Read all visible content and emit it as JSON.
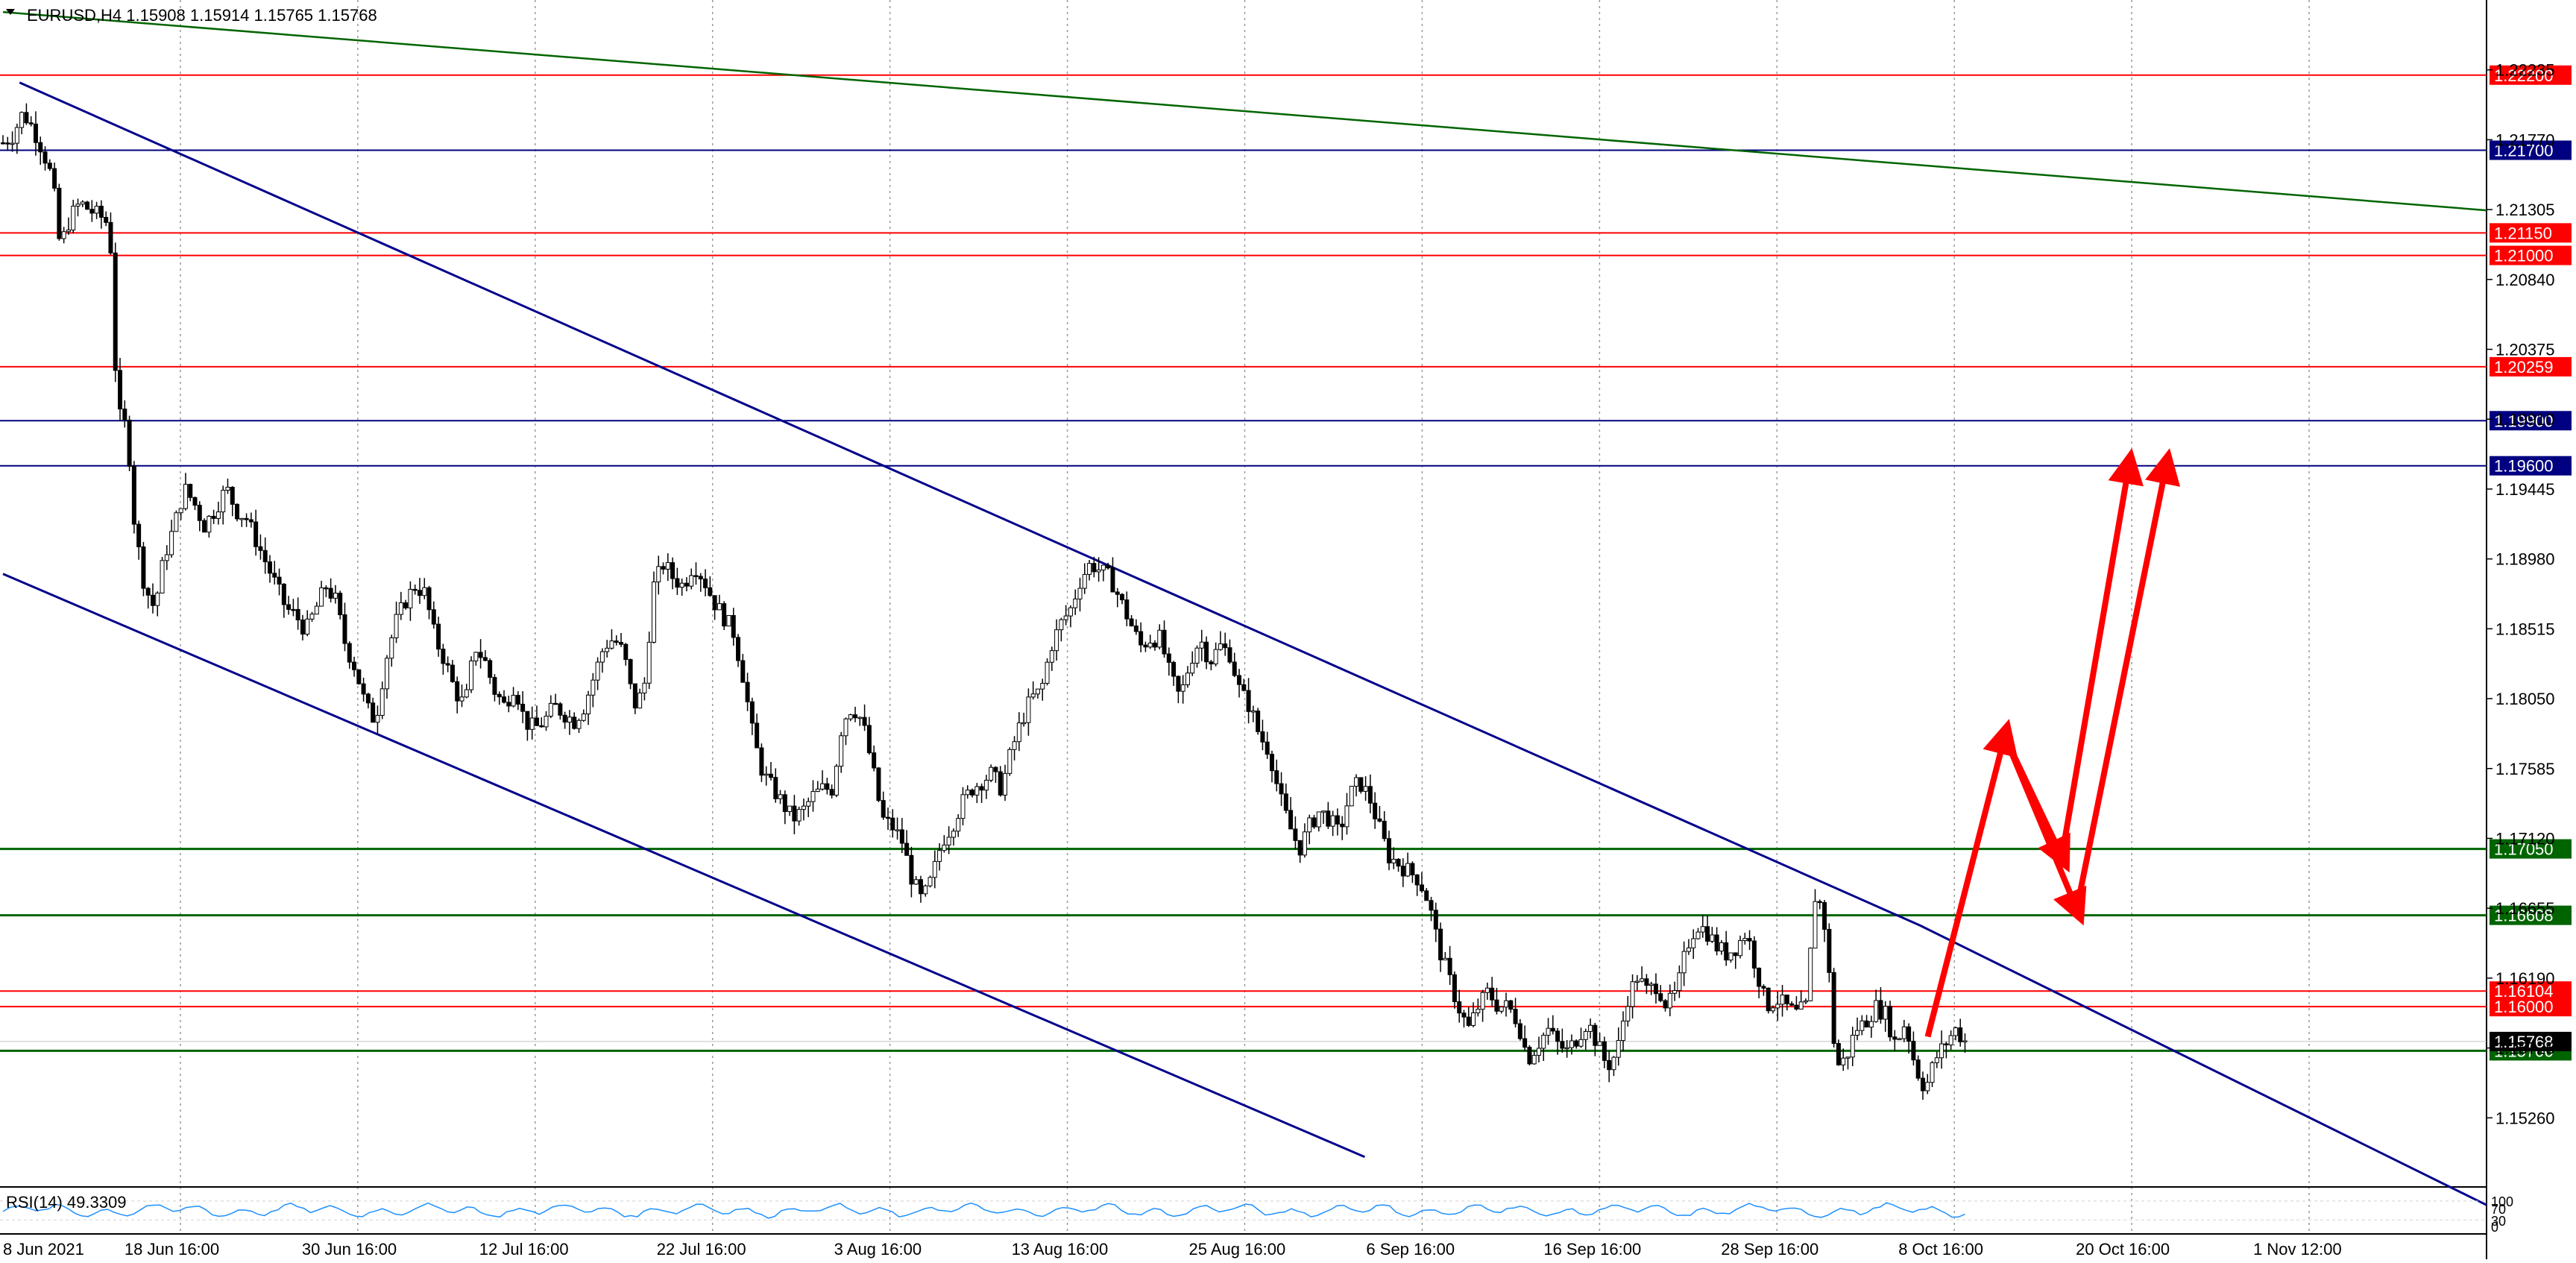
{
  "header": {
    "symbol_line": "EURUSD,H4  1.15908 1.15914 1.15765 1.15768"
  },
  "indicator": {
    "label": "RSI(14) 49.3309",
    "scale_top": "100",
    "scale_mid": "70",
    "scale_bottom": "30",
    "scale_zero": "0"
  },
  "colors": {
    "background": "#ffffff",
    "red_level": "#ff0000",
    "blue_level": "#000080",
    "green_level": "#006400",
    "channel": "#00008b",
    "trendline": "#006400",
    "forecast_arrow": "#ff0000",
    "rsi_line": "#1e90ff",
    "candle": "#000000"
  },
  "chart_data": {
    "type": "candlestick",
    "symbol": "EURUSD",
    "timeframe": "H4",
    "last_price": 1.15768,
    "ylim": [
      1.148,
      1.227
    ],
    "y_ticks": [
      "1.22235",
      "1.21770",
      "1.21305",
      "1.20840",
      "1.20375",
      "1.19910",
      "1.19445",
      "1.18980",
      "1.18515",
      "1.18050",
      "1.17585",
      "1.17120",
      "1.16655",
      "1.16190",
      "1.15725",
      "1.15260"
    ],
    "x_ticks": [
      "8 Jun 2021",
      "18 Jun 16:00",
      "30 Jun 16:00",
      "12 Jul 16:00",
      "22 Jul 16:00",
      "3 Aug 16:00",
      "13 Aug 16:00",
      "25 Aug 16:00",
      "6 Sep 16:00",
      "16 Sep 16:00",
      "28 Sep 16:00",
      "8 Oct 16:00",
      "20 Oct 16:00",
      "1 Nov 12:00"
    ],
    "horizontal_levels": [
      {
        "price": 1.222,
        "label": "1.22200",
        "color": "red"
      },
      {
        "price": 1.217,
        "label": "1.21700",
        "color": "blue"
      },
      {
        "price": 1.2115,
        "label": "1.21150",
        "color": "red"
      },
      {
        "price": 1.21,
        "label": "1.21000",
        "color": "red"
      },
      {
        "price": 1.20259,
        "label": "1.20259",
        "color": "red"
      },
      {
        "price": 1.199,
        "label": "1.19900",
        "color": "blue"
      },
      {
        "price": 1.196,
        "label": "1.19600",
        "color": "blue"
      },
      {
        "price": 1.1705,
        "label": "1.17050",
        "color": "green"
      },
      {
        "price": 1.16608,
        "label": "1.16608",
        "color": "green"
      },
      {
        "price": 1.16104,
        "label": "1.16104",
        "color": "red"
      },
      {
        "price": 1.16,
        "label": "1.16000",
        "color": "red"
      },
      {
        "price": 1.15706,
        "label": "1.15706",
        "color": "green"
      }
    ],
    "close_path": [
      [
        0,
        1.2175
      ],
      [
        0.004,
        1.218
      ],
      [
        0.008,
        1.2195
      ],
      [
        0.012,
        1.2185
      ],
      [
        0.016,
        1.217
      ],
      [
        0.02,
        1.215
      ],
      [
        0.023,
        1.2105
      ],
      [
        0.027,
        1.2125
      ],
      [
        0.031,
        1.2135
      ],
      [
        0.035,
        1.213
      ],
      [
        0.04,
        1.2125
      ],
      [
        0.043,
        1.212
      ],
      [
        0.046,
        1.1995
      ],
      [
        0.05,
        1.1985
      ],
      [
        0.053,
        1.192
      ],
      [
        0.057,
        1.188
      ],
      [
        0.061,
        1.1865
      ],
      [
        0.065,
        1.19
      ],
      [
        0.069,
        1.192
      ],
      [
        0.073,
        1.1945
      ],
      [
        0.077,
        1.1935
      ],
      [
        0.081,
        1.192
      ],
      [
        0.085,
        1.193
      ],
      [
        0.09,
        1.1945
      ],
      [
        0.094,
        1.193
      ],
      [
        0.098,
        1.1925
      ],
      [
        0.102,
        1.191
      ],
      [
        0.106,
        1.1895
      ],
      [
        0.11,
        1.188
      ],
      [
        0.114,
        1.1865
      ],
      [
        0.118,
        1.186
      ],
      [
        0.122,
        1.185
      ],
      [
        0.126,
        1.1865
      ],
      [
        0.13,
        1.188
      ],
      [
        0.134,
        1.187
      ],
      [
        0.138,
        1.184
      ],
      [
        0.142,
        1.1825
      ],
      [
        0.146,
        1.18
      ],
      [
        0.15,
        1.179
      ],
      [
        0.154,
        1.183
      ],
      [
        0.158,
        1.1855
      ],
      [
        0.162,
        1.187
      ],
      [
        0.166,
        1.188
      ],
      [
        0.17,
        1.1875
      ],
      [
        0.174,
        1.1845
      ],
      [
        0.178,
        1.183
      ],
      [
        0.182,
        1.181
      ],
      [
        0.186,
        1.18
      ],
      [
        0.19,
        1.184
      ],
      [
        0.194,
        1.183
      ],
      [
        0.198,
        1.181
      ],
      [
        0.202,
        1.18
      ],
      [
        0.206,
        1.1815
      ],
      [
        0.21,
        1.179
      ],
      [
        0.214,
        1.1785
      ],
      [
        0.218,
        1.179
      ],
      [
        0.222,
        1.18
      ],
      [
        0.226,
        1.1795
      ],
      [
        0.23,
        1.179
      ],
      [
        0.234,
        1.18
      ],
      [
        0.238,
        1.182
      ],
      [
        0.242,
        1.184
      ],
      [
        0.246,
        1.1845
      ],
      [
        0.25,
        1.1835
      ],
      [
        0.254,
        1.18
      ],
      [
        0.258,
        1.181
      ],
      [
        0.262,
        1.188
      ],
      [
        0.266,
        1.1895
      ],
      [
        0.27,
        1.1885
      ],
      [
        0.274,
        1.188
      ],
      [
        0.278,
        1.1895
      ],
      [
        0.282,
        1.1885
      ],
      [
        0.286,
        1.187
      ],
      [
        0.29,
        1.186
      ],
      [
        0.294,
        1.185
      ],
      [
        0.298,
        1.182
      ],
      [
        0.302,
        1.178
      ],
      [
        0.306,
        1.1755
      ],
      [
        0.31,
        1.1745
      ],
      [
        0.314,
        1.1735
      ],
      [
        0.318,
        1.1725
      ],
      [
        0.322,
        1.173
      ],
      [
        0.326,
        1.174
      ],
      [
        0.33,
        1.1745
      ],
      [
        0.334,
        1.1745
      ],
      [
        0.338,
        1.179
      ],
      [
        0.342,
        1.18
      ],
      [
        0.346,
        1.179
      ],
      [
        0.35,
        1.176
      ],
      [
        0.354,
        1.1725
      ],
      [
        0.358,
        1.172
      ],
      [
        0.362,
        1.171
      ],
      [
        0.366,
        1.1685
      ],
      [
        0.37,
        1.167
      ],
      [
        0.374,
        1.1685
      ],
      [
        0.378,
        1.171
      ],
      [
        0.382,
        1.172
      ],
      [
        0.386,
        1.1735
      ],
      [
        0.39,
        1.1745
      ],
      [
        0.394,
        1.175
      ],
      [
        0.398,
        1.1755
      ],
      [
        0.402,
        1.1745
      ],
      [
        0.406,
        1.177
      ],
      [
        0.41,
        1.179
      ],
      [
        0.414,
        1.1805
      ],
      [
        0.418,
        1.181
      ],
      [
        0.422,
        1.184
      ],
      [
        0.426,
        1.1855
      ],
      [
        0.43,
        1.1865
      ],
      [
        0.434,
        1.1885
      ],
      [
        0.438,
        1.1895
      ],
      [
        0.442,
        1.189
      ],
      [
        0.446,
        1.1885
      ],
      [
        0.45,
        1.187
      ],
      [
        0.454,
        1.1855
      ],
      [
        0.458,
        1.184
      ],
      [
        0.462,
        1.1845
      ],
      [
        0.466,
        1.1845
      ],
      [
        0.47,
        1.182
      ],
      [
        0.474,
        1.1805
      ],
      [
        0.478,
        1.183
      ],
      [
        0.482,
        1.1845
      ],
      [
        0.486,
        1.183
      ],
      [
        0.49,
        1.184
      ],
      [
        0.494,
        1.1835
      ],
      [
        0.498,
        1.181
      ],
      [
        0.502,
        1.18
      ],
      [
        0.506,
        1.178
      ],
      [
        0.51,
        1.177
      ],
      [
        0.514,
        1.174
      ],
      [
        0.518,
        1.172
      ],
      [
        0.522,
        1.1705
      ],
      [
        0.526,
        1.172
      ],
      [
        0.53,
        1.173
      ],
      [
        0.534,
        1.1725
      ],
      [
        0.538,
        1.1715
      ],
      [
        0.542,
        1.174
      ],
      [
        0.546,
        1.175
      ],
      [
        0.55,
        1.174
      ],
      [
        0.554,
        1.172
      ],
      [
        0.558,
        1.17
      ],
      [
        0.562,
        1.1695
      ],
      [
        0.566,
        1.169
      ],
      [
        0.57,
        1.1685
      ],
      [
        0.574,
        1.167
      ],
      [
        0.578,
        1.164
      ],
      [
        0.582,
        1.162
      ],
      [
        0.586,
        1.16
      ],
      [
        0.59,
        1.1585
      ],
      [
        0.594,
        1.16
      ],
      [
        0.598,
        1.161
      ],
      [
        0.602,
        1.16
      ],
      [
        0.606,
        1.16
      ],
      [
        0.61,
        1.159
      ],
      [
        0.614,
        1.1565
      ],
      [
        0.618,
        1.1575
      ],
      [
        0.622,
        1.1585
      ],
      [
        0.626,
        1.1575
      ],
      [
        0.63,
        1.157
      ],
      [
        0.634,
        1.158
      ],
      [
        0.638,
        1.159
      ],
      [
        0.642,
        1.1575
      ],
      [
        0.646,
        1.156
      ],
      [
        0.65,
        1.157
      ],
      [
        0.654,
        1.1605
      ],
      [
        0.658,
        1.162
      ],
      [
        0.662,
        1.161
      ],
      [
        0.666,
        1.1615
      ],
      [
        0.67,
        1.16
      ],
      [
        0.674,
        1.161
      ],
      [
        0.678,
        1.164
      ],
      [
        0.682,
        1.1655
      ],
      [
        0.686,
        1.165
      ],
      [
        0.69,
        1.164
      ],
      [
        0.694,
        1.1635
      ],
      [
        0.698,
        1.164
      ],
      [
        0.702,
        1.165
      ],
      [
        0.706,
        1.1625
      ],
      [
        0.71,
        1.16
      ],
      [
        0.714,
        1.1605
      ],
      [
        0.718,
        1.16
      ],
      [
        0.722,
        1.1595
      ],
      [
        0.726,
        1.16
      ],
      [
        0.73,
        1.168
      ],
      [
        0.734,
        1.165
      ],
      [
        0.738,
        1.156
      ],
      [
        0.742,
        1.1565
      ],
      [
        0.746,
        1.1585
      ],
      [
        0.75,
        1.159
      ],
      [
        0.754,
        1.16
      ],
      [
        0.758,
        1.1595
      ],
      [
        0.762,
        1.1575
      ],
      [
        0.766,
        1.159
      ],
      [
        0.77,
        1.156
      ],
      [
        0.774,
        1.1545
      ],
      [
        0.778,
        1.1565
      ],
      [
        0.782,
        1.1575
      ],
      [
        0.786,
        1.1585
      ],
      [
        0.79,
        1.1577
      ]
    ],
    "channel_upper": [
      [
        0.0067,
        1.2215
      ],
      [
        0.772,
        1.1654
      ],
      [
        1.0,
        1.1468
      ]
    ],
    "channel_lower": [
      [
        0.0,
        1.1888
      ],
      [
        0.5483,
        1.15
      ]
    ],
    "long_trendline": [
      [
        0.0,
        1.2262
      ],
      [
        1.0,
        1.213
      ]
    ],
    "forecast_path": [
      [
        0.775,
        1.158
      ],
      [
        0.806,
        1.178
      ],
      [
        0.829,
        1.17
      ],
      [
        0.856,
        1.196
      ]
    ],
    "forecast_path_alt": [
      [
        0.806,
        1.178
      ],
      [
        0.835,
        1.1665
      ],
      [
        0.871,
        1.196
      ]
    ],
    "rsi": {
      "period": 14,
      "value": 49.3309
    }
  }
}
